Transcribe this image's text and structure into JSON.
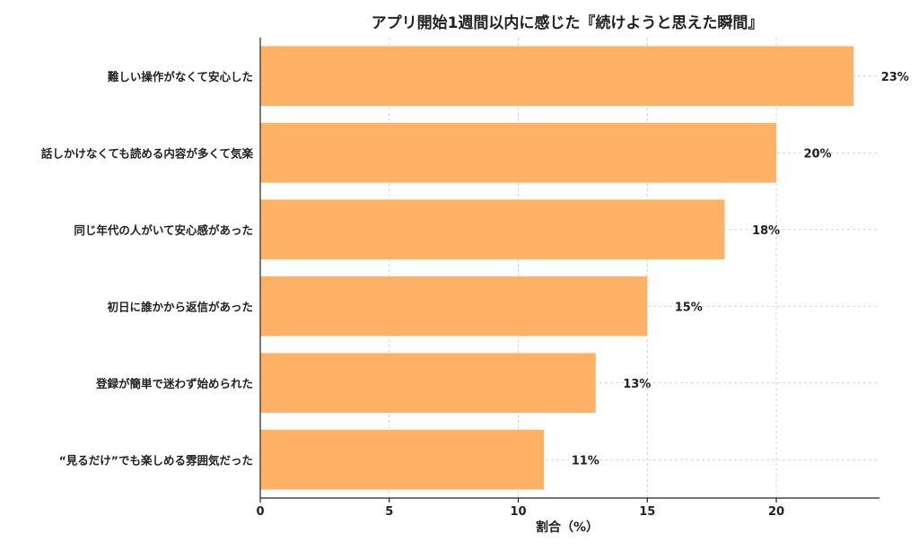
{
  "chart_data": {
    "type": "bar",
    "orientation": "horizontal",
    "title": "アプリ開始1週間以内に感じた『続けようと思えた瞬間』",
    "xlabel": "割合（%）",
    "ylabel": "",
    "categories": [
      "難しい操作がなくて安心した",
      "話しかけなくても読める内容が多くて気楽",
      "同じ年代の人がいて安心感があった",
      "初日に誰かから返信があった",
      "登録が簡単で迷わず始められた",
      "“見るだけ”でも楽しめる雰囲気だった"
    ],
    "values": [
      23,
      20,
      18,
      15,
      13,
      11
    ],
    "value_labels": [
      "23%",
      "20%",
      "18%",
      "15%",
      "13%",
      "11%"
    ],
    "xlim": [
      0,
      24
    ],
    "xticks": [
      0,
      5,
      10,
      15,
      20
    ],
    "grid": true,
    "bar_color": "#FFB266"
  }
}
